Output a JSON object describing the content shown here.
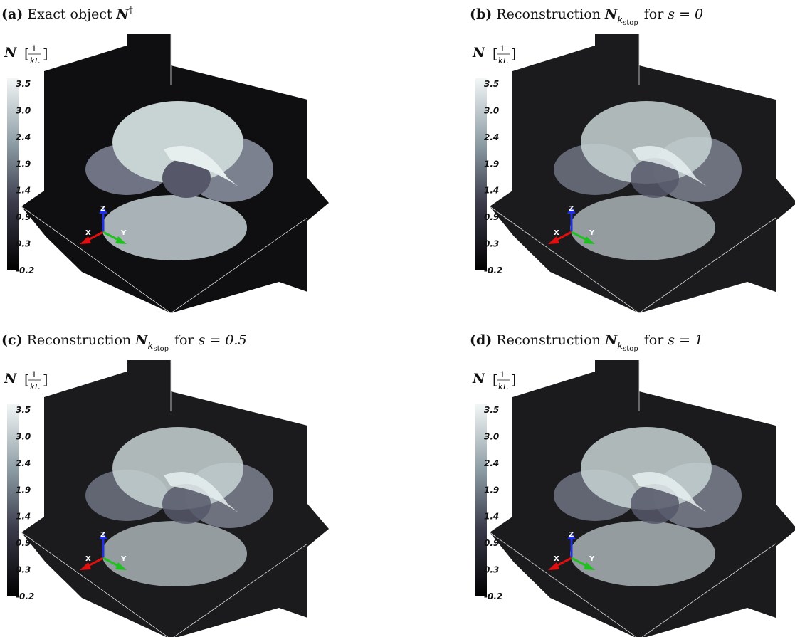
{
  "panels": [
    {
      "label": "(a)",
      "title": {
        "text": "Exact object",
        "symbol": "N",
        "superscript": "†"
      },
      "colorbar": {
        "symbol": "N",
        "numerator": "1",
        "denominator": "kL",
        "ticks": [
          "3.5",
          "3.0",
          "2.4",
          "1.9",
          "1.4",
          "0.9",
          "0.3",
          "-0.2"
        ]
      },
      "axes": {
        "x": "X",
        "y": "Y",
        "z": "Z"
      }
    },
    {
      "label": "(b)",
      "title": {
        "text": "Reconstruction",
        "symbol": "N",
        "subscript": "k",
        "subsubscript": "stop",
        "condition": "for",
        "equation": "s = 0"
      },
      "colorbar": {
        "symbol": "N",
        "numerator": "1",
        "denominator": "kL",
        "ticks": [
          "3.5",
          "3.0",
          "2.4",
          "1.9",
          "1.4",
          "0.9",
          "0.3",
          "-0.2"
        ]
      },
      "axes": {
        "x": "X",
        "y": "Y",
        "z": "Z"
      }
    },
    {
      "label": "(c)",
      "title": {
        "text": "Reconstruction",
        "symbol": "N",
        "subscript": "k",
        "subsubscript": "stop",
        "condition": "for",
        "equation": "s = 0.5"
      },
      "colorbar": {
        "symbol": "N",
        "numerator": "1",
        "denominator": "kL",
        "ticks": [
          "3.5",
          "3.0",
          "2.4",
          "1.9",
          "1.4",
          "0.9",
          "0.3",
          "-0.2"
        ]
      },
      "axes": {
        "x": "X",
        "y": "Y",
        "z": "Z"
      }
    },
    {
      "label": "(d)",
      "title": {
        "text": "Reconstruction",
        "symbol": "N",
        "subscript": "k",
        "subsubscript": "stop",
        "condition": "for",
        "equation": "s = 1"
      },
      "colorbar": {
        "symbol": "N",
        "numerator": "1",
        "denominator": "kL",
        "ticks": [
          "3.5",
          "3.0",
          "2.4",
          "1.9",
          "1.4",
          "0.9",
          "0.3",
          "-0.2"
        ]
      },
      "axes": {
        "x": "X",
        "y": "Y",
        "z": "Z"
      }
    }
  ]
}
